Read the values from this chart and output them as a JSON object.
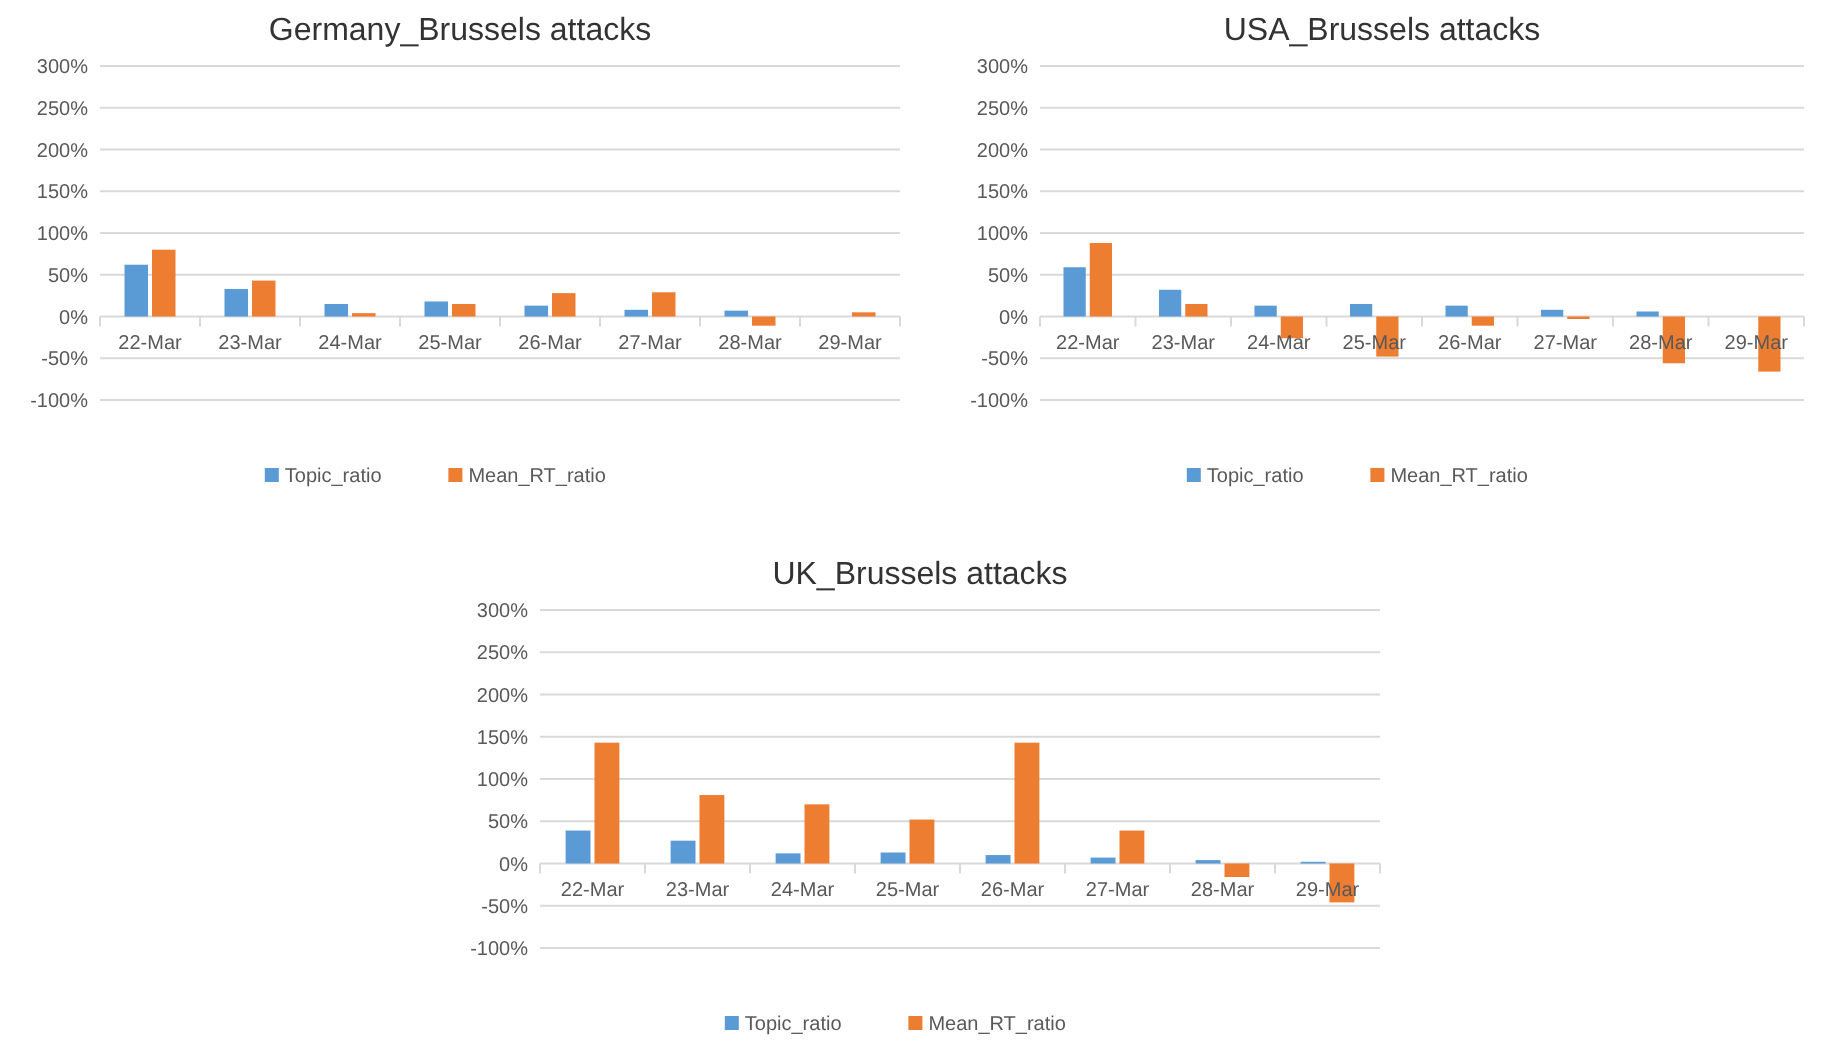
{
  "chart_data": [
    {
      "type": "bar",
      "title": "Germany_Brussels attacks",
      "categories": [
        "22-Mar",
        "23-Mar",
        "24-Mar",
        "25-Mar",
        "26-Mar",
        "27-Mar",
        "28-Mar",
        "29-Mar"
      ],
      "series": [
        {
          "name": "Topic_ratio",
          "color": "#5b9bd5",
          "values": [
            62,
            33,
            15,
            18,
            13,
            8,
            7,
            0
          ]
        },
        {
          "name": "Mean_RT_ratio",
          "color": "#ed7d31",
          "values": [
            80,
            43,
            4,
            15,
            28,
            29,
            -11,
            5
          ]
        }
      ],
      "ylim": [
        -100,
        300
      ],
      "yticks": [
        {
          "value": -100,
          "label": "-100%"
        },
        {
          "value": -50,
          "label": "-50%"
        },
        {
          "value": 0,
          "label": "0%"
        },
        {
          "value": 50,
          "label": "50%"
        },
        {
          "value": 100,
          "label": "100%"
        },
        {
          "value": 150,
          "label": "150%"
        },
        {
          "value": 200,
          "label": "200%"
        },
        {
          "value": 250,
          "label": "250%"
        },
        {
          "value": 300,
          "label": "300%"
        }
      ],
      "grid": "y",
      "legend": "bottom"
    },
    {
      "type": "bar",
      "title": "USA_Brussels attacks",
      "categories": [
        "22-Mar",
        "23-Mar",
        "24-Mar",
        "25-Mar",
        "26-Mar",
        "27-Mar",
        "28-Mar",
        "29-Mar"
      ],
      "series": [
        {
          "name": "Topic_ratio",
          "color": "#5b9bd5",
          "values": [
            59,
            32,
            13,
            15,
            13,
            8,
            6,
            0
          ]
        },
        {
          "name": "Mean_RT_ratio",
          "color": "#ed7d31",
          "values": [
            88,
            15,
            -26,
            -48,
            -11,
            -3,
            -56,
            -66
          ]
        }
      ],
      "ylim": [
        -100,
        300
      ],
      "yticks": [
        {
          "value": -100,
          "label": "-100%"
        },
        {
          "value": -50,
          "label": "-50%"
        },
        {
          "value": 0,
          "label": "0%"
        },
        {
          "value": 50,
          "label": "50%"
        },
        {
          "value": 100,
          "label": "100%"
        },
        {
          "value": 150,
          "label": "150%"
        },
        {
          "value": 200,
          "label": "200%"
        },
        {
          "value": 250,
          "label": "250%"
        },
        {
          "value": 300,
          "label": "300%"
        }
      ],
      "grid": "y",
      "legend": "bottom"
    },
    {
      "type": "bar",
      "title": "UK_Brussels attacks",
      "categories": [
        "22-Mar",
        "23-Mar",
        "24-Mar",
        "25-Mar",
        "26-Mar",
        "27-Mar",
        "28-Mar",
        "29-Mar"
      ],
      "series": [
        {
          "name": "Topic_ratio",
          "color": "#5b9bd5",
          "values": [
            39,
            27,
            12,
            13,
            10,
            7,
            4,
            2
          ]
        },
        {
          "name": "Mean_RT_ratio",
          "color": "#ed7d31",
          "values": [
            143,
            81,
            70,
            52,
            143,
            39,
            -16,
            -46
          ]
        }
      ],
      "ylim": [
        -100,
        300
      ],
      "yticks": [
        {
          "value": -100,
          "label": "-100%"
        },
        {
          "value": -50,
          "label": "-50%"
        },
        {
          "value": 0,
          "label": "0%"
        },
        {
          "value": 50,
          "label": "50%"
        },
        {
          "value": 100,
          "label": "100%"
        },
        {
          "value": 150,
          "label": "150%"
        },
        {
          "value": 200,
          "label": "200%"
        },
        {
          "value": 250,
          "label": "250%"
        },
        {
          "value": 300,
          "label": "300%"
        }
      ],
      "grid": "y",
      "legend": "bottom"
    }
  ]
}
